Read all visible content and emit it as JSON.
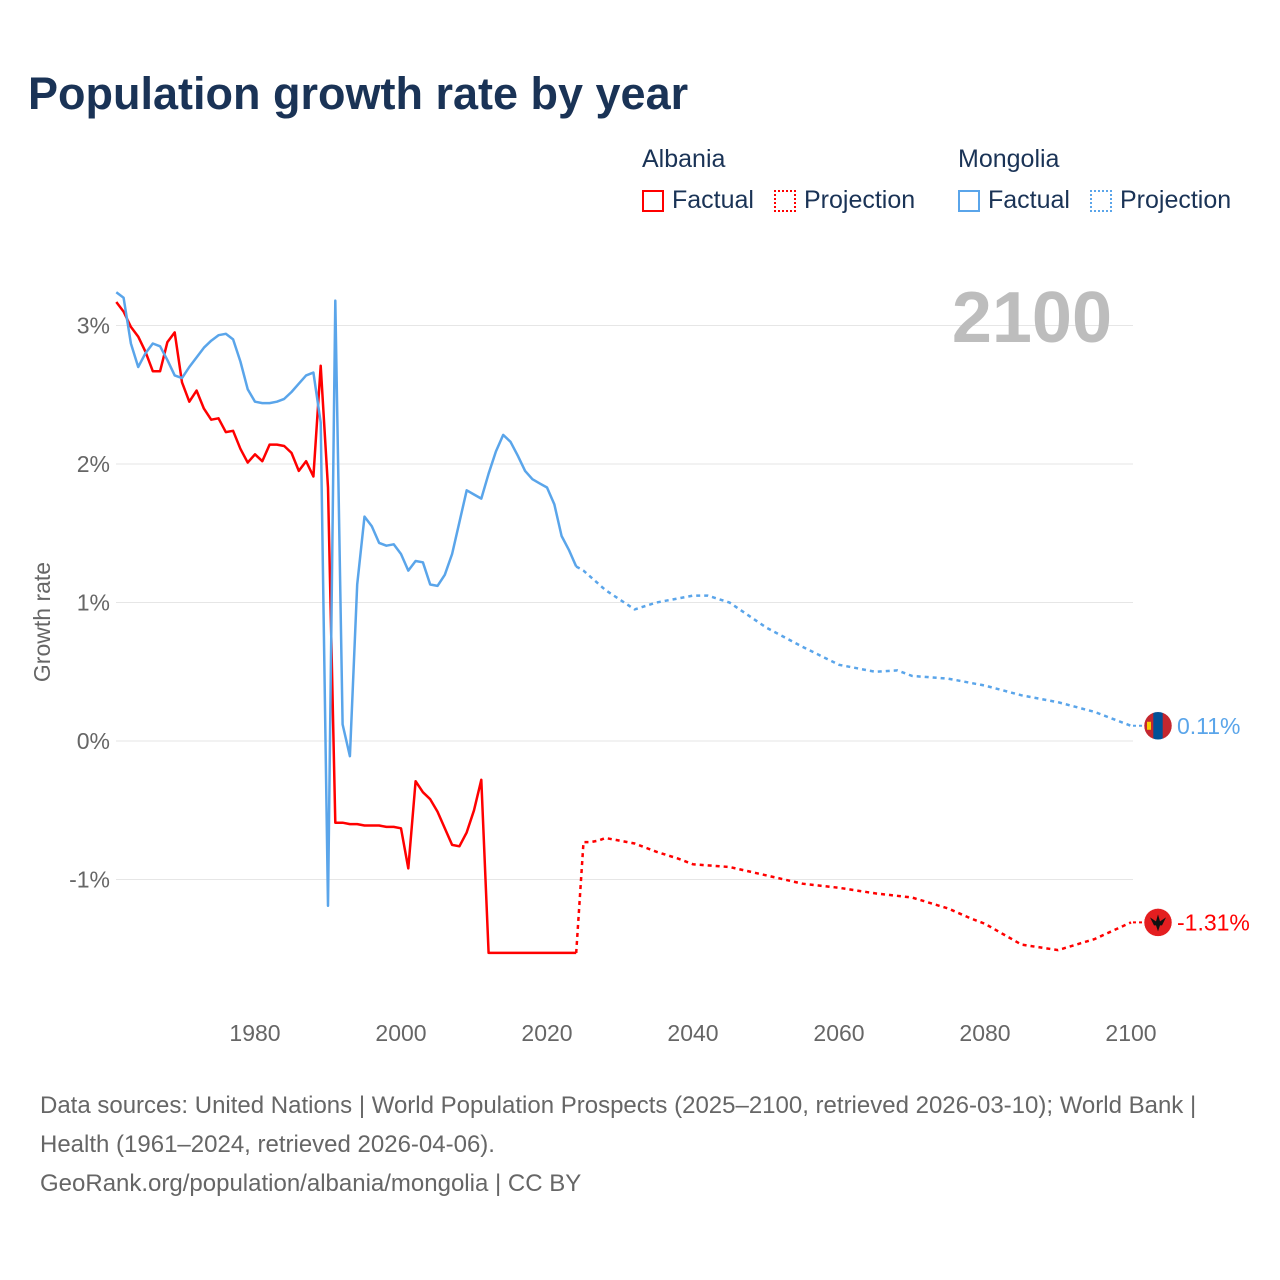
{
  "title": "Population growth rate by year",
  "legend": {
    "groups": [
      {
        "name": "Albania",
        "color": "#ff0000",
        "factual": "Factual",
        "projection": "Projection"
      },
      {
        "name": "Mongolia",
        "color": "#5aa5ea",
        "factual": "Factual",
        "projection": "Projection"
      }
    ]
  },
  "year_label": "2100",
  "footer": {
    "line1": "Data sources: United Nations | World Population Prospects (2025–2100, retrieved 2026-03-10); World Bank | Health (1961–2024, retrieved 2026-04-06).",
    "line2": "GeoRank.org/population/albania/mongolia | CC BY"
  },
  "chart_data": {
    "type": "line",
    "title": "Population growth rate by year",
    "xlabel": "",
    "ylabel": "Growth rate",
    "xlim": [
      1961,
      2100
    ],
    "ylim": [
      -1.9,
      3.4
    ],
    "x_ticks": [
      1980,
      2000,
      2020,
      2040,
      2060,
      2080,
      2100
    ],
    "x_tick_labels": [
      "1980",
      "2000",
      "2020",
      "2040",
      "2060",
      "2080",
      "2100"
    ],
    "y_ticks": [
      -1,
      0,
      1,
      2,
      3
    ],
    "y_tick_labels": [
      "-1%",
      "0%",
      "1%",
      "2%",
      "3%"
    ],
    "grid": true,
    "legend_position": "top-right",
    "series": [
      {
        "name": "Albania",
        "color": "#ff0000",
        "end_label": "-1.31%",
        "factual": {
          "x": [
            1961,
            1962,
            1963,
            1964,
            1965,
            1966,
            1967,
            1968,
            1969,
            1970,
            1971,
            1972,
            1973,
            1974,
            1975,
            1976,
            1977,
            1978,
            1979,
            1980,
            1981,
            1982,
            1983,
            1984,
            1985,
            1986,
            1987,
            1988,
            1989,
            1990,
            1991,
            1992,
            1993,
            1994,
            1995,
            1996,
            1997,
            1998,
            1999,
            2000,
            2001,
            2002,
            2003,
            2004,
            2005,
            2006,
            2007,
            2008,
            2009,
            2010,
            2011,
            2012,
            2013,
            2014,
            2015,
            2016,
            2017,
            2018,
            2019,
            2020,
            2021,
            2022,
            2023,
            2024
          ],
          "y": [
            3.17,
            3.1,
            2.99,
            2.92,
            2.81,
            2.67,
            2.67,
            2.88,
            2.95,
            2.59,
            2.45,
            2.53,
            2.4,
            2.32,
            2.33,
            2.23,
            2.24,
            2.11,
            2.01,
            2.07,
            2.02,
            2.14,
            2.14,
            2.13,
            2.08,
            1.95,
            2.02,
            1.91,
            2.71,
            1.83,
            -0.59,
            -0.59,
            -0.6,
            -0.6,
            -0.61,
            -0.61,
            -0.61,
            -0.62,
            -0.62,
            -0.63,
            -0.92,
            -0.29,
            -0.37,
            -0.42,
            -0.51,
            -0.63,
            -0.75,
            -0.76,
            -0.66,
            -0.5,
            -0.28,
            -1.53,
            -1.53,
            -1.53,
            -1.53,
            -1.53,
            -1.53,
            -1.53,
            -1.53,
            -1.53,
            -1.53,
            -1.53,
            -1.53,
            -1.53
          ]
        },
        "projection": {
          "x": [
            2024,
            2025,
            2026,
            2027,
            2028,
            2030,
            2032,
            2035,
            2038,
            2040,
            2045,
            2050,
            2055,
            2060,
            2065,
            2070,
            2075,
            2078,
            2080,
            2085,
            2090,
            2095,
            2100
          ],
          "y": [
            -1.53,
            -0.73,
            -0.73,
            -0.72,
            -0.7,
            -0.72,
            -0.74,
            -0.8,
            -0.85,
            -0.89,
            -0.91,
            -0.97,
            -1.03,
            -1.06,
            -1.1,
            -1.13,
            -1.21,
            -1.28,
            -1.32,
            -1.47,
            -1.51,
            -1.43,
            -1.31
          ]
        }
      },
      {
        "name": "Mongolia",
        "color": "#5aa5ea",
        "end_label": "0.11%",
        "factual": {
          "x": [
            1961,
            1962,
            1963,
            1964,
            1965,
            1966,
            1967,
            1968,
            1969,
            1970,
            1971,
            1972,
            1973,
            1974,
            1975,
            1976,
            1977,
            1978,
            1979,
            1980,
            1981,
            1982,
            1983,
            1984,
            1985,
            1986,
            1987,
            1988,
            1989,
            1990,
            1991,
            1992,
            1993,
            1994,
            1995,
            1996,
            1997,
            1998,
            1999,
            2000,
            2001,
            2002,
            2003,
            2004,
            2005,
            2006,
            2007,
            2008,
            2009,
            2010,
            2011,
            2012,
            2013,
            2014,
            2015,
            2016,
            2017,
            2018,
            2019,
            2020,
            2021,
            2022,
            2023,
            2024
          ],
          "y": [
            3.24,
            3.2,
            2.87,
            2.7,
            2.8,
            2.87,
            2.85,
            2.75,
            2.64,
            2.62,
            2.7,
            2.77,
            2.84,
            2.89,
            2.93,
            2.94,
            2.9,
            2.74,
            2.54,
            2.45,
            2.44,
            2.44,
            2.45,
            2.47,
            2.52,
            2.58,
            2.64,
            2.66,
            2.3,
            -1.19,
            3.18,
            0.12,
            -0.11,
            1.13,
            1.62,
            1.55,
            1.43,
            1.41,
            1.42,
            1.35,
            1.23,
            1.3,
            1.29,
            1.13,
            1.12,
            1.2,
            1.35,
            1.58,
            1.81,
            1.78,
            1.75,
            1.93,
            2.09,
            2.21,
            2.16,
            2.06,
            1.95,
            1.89,
            1.86,
            1.83,
            1.71,
            1.48,
            1.38,
            1.26
          ]
        },
        "projection": {
          "x": [
            2024,
            2025,
            2028,
            2030,
            2032,
            2035,
            2040,
            2042,
            2045,
            2050,
            2055,
            2060,
            2065,
            2068,
            2070,
            2075,
            2080,
            2085,
            2090,
            2095,
            2100
          ],
          "y": [
            1.26,
            1.23,
            1.09,
            1.02,
            0.95,
            1.0,
            1.05,
            1.05,
            1.0,
            0.82,
            0.68,
            0.55,
            0.5,
            0.51,
            0.47,
            0.45,
            0.4,
            0.33,
            0.28,
            0.21,
            0.11
          ]
        }
      }
    ]
  }
}
